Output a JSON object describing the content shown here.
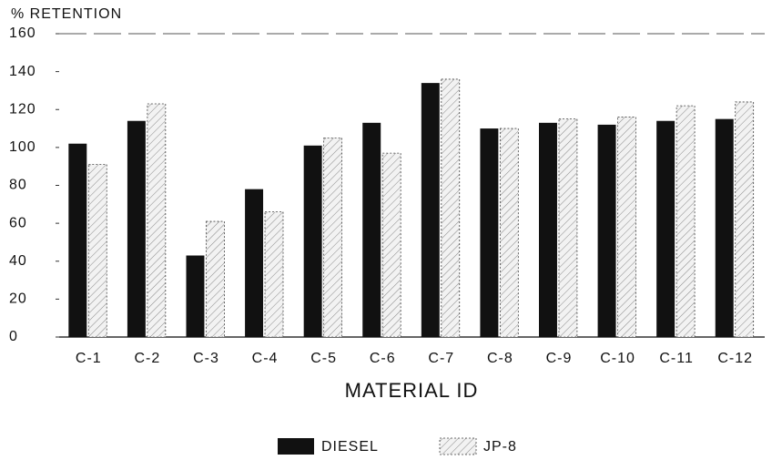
{
  "chart_data": {
    "type": "bar",
    "y_label": "% RETENTION",
    "x_label": "MATERIAL ID",
    "categories": [
      "C-1",
      "C-2",
      "C-3",
      "C-4",
      "C-5",
      "C-6",
      "C-7",
      "C-8",
      "C-9",
      "C-10",
      "C-11",
      "C-12"
    ],
    "series": [
      {
        "name": "DIESEL",
        "color": "#111111",
        "values": [
          102,
          114,
          43,
          78,
          101,
          113,
          134,
          110,
          113,
          112,
          114,
          115
        ]
      },
      {
        "name": "JP-8",
        "color": "#f2f2f2",
        "values": [
          91,
          123,
          61,
          66,
          105,
          97,
          136,
          110,
          115,
          116,
          122,
          124
        ]
      }
    ],
    "ylim": [
      0,
      160
    ],
    "yticks": [
      0,
      20,
      40,
      60,
      80,
      100,
      120,
      140,
      160
    ],
    "grid": false,
    "legend": "bottom"
  }
}
